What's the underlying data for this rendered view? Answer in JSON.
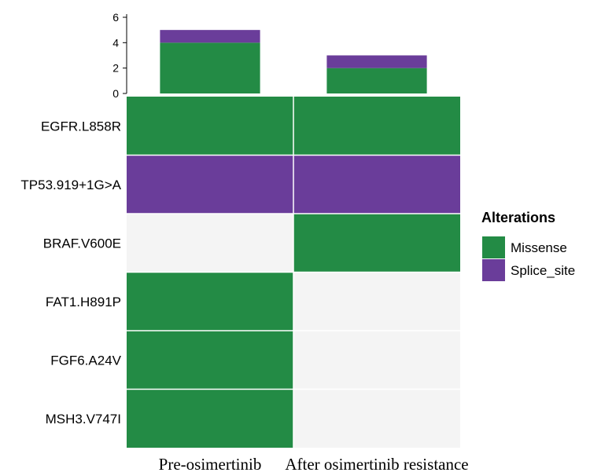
{
  "colors": {
    "Missense": "#238b45",
    "Splice_site": "#6a3d9a",
    "empty": "#f4f4f4",
    "gridline": "#ffffff",
    "axis": "#000000"
  },
  "chart_data": [
    {
      "type": "bar",
      "role": "top-stacked-bar",
      "categories": [
        "Pre-osimertinib",
        "After osimertinib resistance"
      ],
      "series": [
        {
          "name": "Missense",
          "values": [
            4,
            2
          ]
        },
        {
          "name": "Splice_site",
          "values": [
            1,
            1
          ]
        }
      ],
      "ylim": [
        0,
        6
      ],
      "yticks": [
        0,
        2,
        4,
        6
      ],
      "title": "",
      "xlabel": "",
      "ylabel": ""
    },
    {
      "type": "heatmap",
      "role": "oncoprint",
      "columns": [
        "Pre-osimertinib",
        "After osimertinib resistance"
      ],
      "rows": [
        "EGFR.L858R",
        "TP53.919+1G>A",
        "BRAF.V600E",
        "FAT1.H891P",
        "FGF6.A24V",
        "MSH3.V747I"
      ],
      "cells": [
        [
          "Missense",
          "Missense"
        ],
        [
          "Splice_site",
          "Splice_site"
        ],
        [
          "",
          "Missense"
        ],
        [
          "Missense",
          ""
        ],
        [
          "Missense",
          ""
        ],
        [
          "Missense",
          ""
        ]
      ]
    }
  ],
  "legend": {
    "title": "Alterations",
    "items": [
      {
        "label": "Missense",
        "color_key": "Missense"
      },
      {
        "label": "Splice_site",
        "color_key": "Splice_site"
      }
    ]
  }
}
